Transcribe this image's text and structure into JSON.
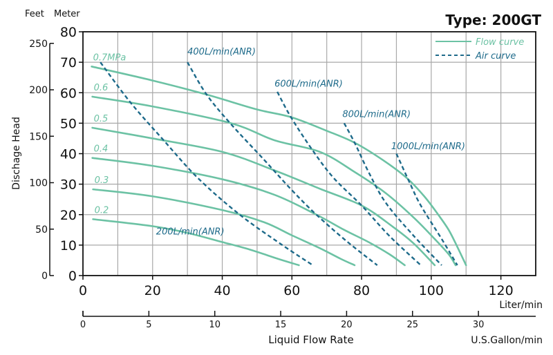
{
  "chart_data": {
    "type": "line",
    "title": "Type: 200GT",
    "xlabel": "Liquid Flow Rate",
    "x_unit_primary": "Liter/min",
    "x_unit_secondary": "U.S.Gallon/min",
    "ylabel": "Dischage Head",
    "y_unit_primary": "Meter",
    "y_unit_secondary": "Feet",
    "xlim": [
      0,
      130
    ],
    "ylim": [
      0,
      80
    ],
    "x_ticks": [
      0,
      20,
      40,
      60,
      80,
      100,
      120
    ],
    "y_ticks": [
      0,
      10,
      20,
      30,
      40,
      50,
      60,
      70,
      80
    ],
    "feet_ticks": [
      0,
      50,
      100,
      150,
      200,
      250
    ],
    "gallon_ticks": [
      0,
      5,
      10,
      15,
      20,
      25,
      30
    ],
    "grid": true,
    "legend": {
      "placement": "top-right",
      "entries": [
        "Flow curve",
        "Air curve"
      ]
    },
    "colors": {
      "flow": "#6cc2a4",
      "air": "#1d6a8a",
      "axis": "#111111",
      "grid": "#a8a8a8"
    },
    "flow_series": [
      {
        "name": "0.7MPa",
        "points": [
          [
            2.5,
            68.6
          ],
          [
            20,
            64
          ],
          [
            35.5,
            59.4
          ],
          [
            50,
            54.5
          ],
          [
            59.7,
            52
          ],
          [
            70,
            47.5
          ],
          [
            78,
            43.6
          ],
          [
            86,
            38
          ],
          [
            93,
            32
          ],
          [
            98,
            26
          ],
          [
            102,
            20
          ],
          [
            105,
            15
          ],
          [
            107.5,
            9.4
          ],
          [
            110,
            3.4
          ]
        ]
      },
      {
        "name": "0.6",
        "points": [
          [
            2.7,
            58.7
          ],
          [
            20,
            55.5
          ],
          [
            42.5,
            50
          ],
          [
            55,
            44.4
          ],
          [
            68,
            40.6
          ],
          [
            78,
            34
          ],
          [
            87,
            27
          ],
          [
            95,
            19
          ],
          [
            101,
            12
          ],
          [
            105,
            7
          ],
          [
            107,
            3.4
          ]
        ]
      },
      {
        "name": "0.5",
        "points": [
          [
            2.7,
            48.5
          ],
          [
            20,
            45
          ],
          [
            40,
            40.6
          ],
          [
            55,
            34.5
          ],
          [
            68,
            28.5
          ],
          [
            80,
            23
          ],
          [
            89,
            16
          ],
          [
            95,
            10.5
          ],
          [
            101,
            3.4
          ]
        ]
      },
      {
        "name": "0.4",
        "points": [
          [
            2.7,
            38.6
          ],
          [
            20,
            36
          ],
          [
            40,
            31.6
          ],
          [
            55,
            26.5
          ],
          [
            67,
            20
          ],
          [
            75,
            15
          ],
          [
            82,
            11
          ],
          [
            88,
            7
          ],
          [
            92.4,
            3.4
          ]
        ]
      },
      {
        "name": "0.3",
        "points": [
          [
            2.9,
            28.3
          ],
          [
            20,
            26
          ],
          [
            40,
            21.5
          ],
          [
            52,
            17.5
          ],
          [
            60,
            13.2
          ],
          [
            68,
            9
          ],
          [
            74,
            5.5
          ],
          [
            78,
            3.4
          ]
        ]
      },
      {
        "name": "0.2",
        "points": [
          [
            2.9,
            18.5
          ],
          [
            20,
            16.2
          ],
          [
            30,
            14
          ],
          [
            40,
            11
          ],
          [
            48,
            8.5
          ],
          [
            56,
            5.5
          ],
          [
            62,
            3.4
          ]
        ]
      }
    ],
    "air_series": [
      {
        "name": "200L/min(ANR)",
        "points": [
          [
            5,
            70
          ],
          [
            13.5,
            57
          ],
          [
            22.7,
            45
          ],
          [
            33,
            32
          ],
          [
            45,
            20
          ],
          [
            57,
            10.2
          ],
          [
            66,
            3.4
          ]
        ]
      },
      {
        "name": "400L/min(ANR)",
        "points": [
          [
            30,
            70
          ],
          [
            35.5,
            59.4
          ],
          [
            42.5,
            49.7
          ],
          [
            52,
            38
          ],
          [
            60,
            28
          ],
          [
            67,
            20
          ],
          [
            76,
            11
          ],
          [
            84.5,
            3.4
          ]
        ]
      },
      {
        "name": "600L/min(ANR)",
        "points": [
          [
            55.8,
            60.3
          ],
          [
            59.7,
            52
          ],
          [
            66,
            41
          ],
          [
            72,
            32
          ],
          [
            80,
            23
          ],
          [
            88,
            13
          ],
          [
            97,
            3.4
          ]
        ]
      },
      {
        "name": "800L/min(ANR)",
        "points": [
          [
            75,
            50
          ],
          [
            78,
            43.6
          ],
          [
            82,
            34
          ],
          [
            87,
            23.8
          ],
          [
            95,
            13
          ],
          [
            103,
            3.4
          ]
        ]
      },
      {
        "name": "1000L/min(ANR)",
        "points": [
          [
            90,
            40
          ],
          [
            94,
            30
          ],
          [
            97,
            23
          ],
          [
            103,
            12
          ],
          [
            107.5,
            3.4
          ]
        ]
      }
    ]
  }
}
